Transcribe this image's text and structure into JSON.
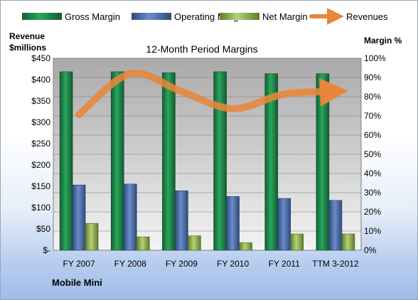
{
  "chart_data": {
    "type": "bar",
    "title": "12-Month Period Margins",
    "company": "Mobile Mini",
    "left_axis_label": [
      "Revenue",
      "$millions"
    ],
    "right_axis_label": "Margin %",
    "categories": [
      "FY 2007",
      "FY 2008",
      "FY 2009",
      "FY 2010",
      "FY 2011",
      "TTM 3-2012"
    ],
    "left_ticks": [
      "$-",
      "$50",
      "$100",
      "$150",
      "$200",
      "$250",
      "$300",
      "$350",
      "$400",
      "$450"
    ],
    "right_ticks": [
      "0%",
      "10%",
      "20%",
      "30%",
      "40%",
      "50%",
      "60%",
      "70%",
      "80%",
      "90%",
      "100%"
    ],
    "ylim_left": [
      0,
      450
    ],
    "ylim_right": [
      0,
      100
    ],
    "series": [
      {
        "name": "Gross Margin",
        "axis": "right",
        "kind": "bar",
        "color": "#1f8a4c",
        "values": [
          93,
          93,
          92.5,
          93,
          92,
          92
        ]
      },
      {
        "name": "Operating Margin",
        "axis": "right",
        "kind": "bar",
        "color": "#4a6ea9",
        "values": [
          34,
          34.5,
          31,
          28,
          27,
          26
        ]
      },
      {
        "name": "Net Margin",
        "axis": "right",
        "kind": "bar",
        "color": "#8fb34f",
        "values": [
          14,
          7,
          7.5,
          4,
          8.5,
          8.5
        ]
      },
      {
        "name": "Revenues",
        "axis": "left",
        "kind": "line",
        "color": "#e8863a",
        "values": [
          318,
          414,
          372,
          332,
          366,
          372
        ]
      }
    ],
    "legend_position": "top",
    "grid": true
  }
}
